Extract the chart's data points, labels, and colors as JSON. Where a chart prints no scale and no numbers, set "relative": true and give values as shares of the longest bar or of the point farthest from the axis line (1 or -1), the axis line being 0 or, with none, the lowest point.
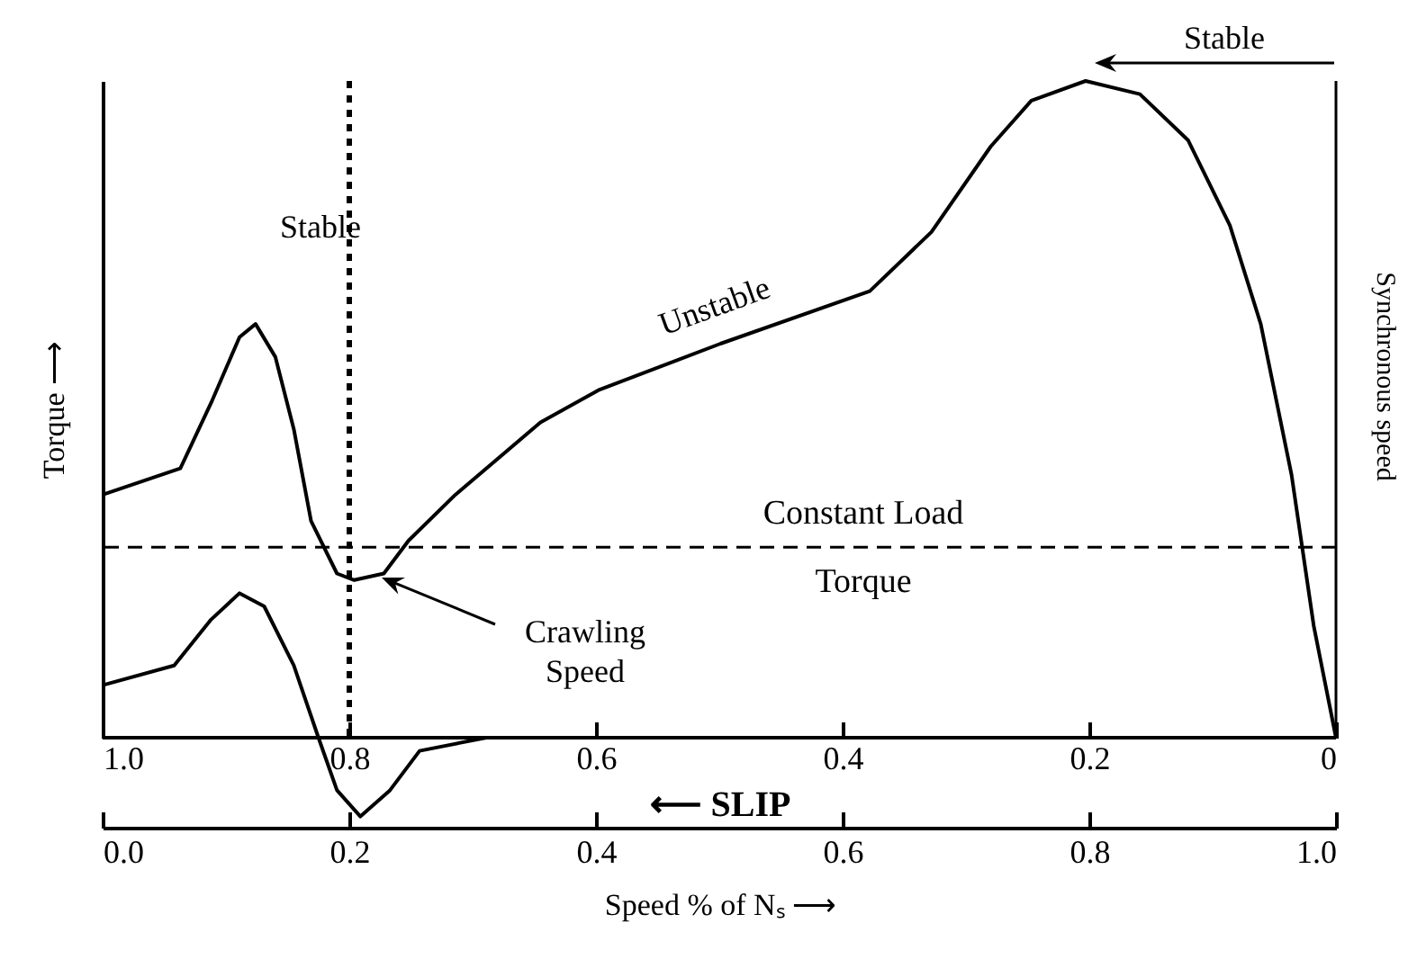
{
  "chart_data": {
    "type": "line",
    "relative": true,
    "xlabel": "Speed % of Nₛ ⟶",
    "ylabel": "Torque ⟶",
    "x2label": "⟵ SLIP",
    "xlim": [
      0,
      1
    ],
    "xticks": [
      {
        "value": 0,
        "label": "0.0"
      },
      0.2,
      0.4,
      0.6,
      0.8,
      {
        "value": 1,
        "label": "1.0"
      }
    ],
    "x2lim": [
      1,
      0
    ],
    "x2ticks": [
      {
        "value": 1,
        "label": "1.0"
      },
      0.8,
      0.6,
      0.4,
      0.2,
      0
    ],
    "series": [
      {
        "color": "#000000",
        "x": [
          0,
          0.063,
          0.088,
          0.111,
          0.124,
          0.14,
          0.155,
          0.169,
          0.19,
          0.204,
          0.228,
          0.248,
          0.286,
          0.355,
          0.403,
          0.501,
          0.622,
          0.672,
          0.72,
          0.753,
          0.797,
          0.841,
          0.88,
          0.914,
          0.939,
          0.964,
          0.982,
          1.0
        ],
        "values": [
          0.37,
          0.41,
          0.51,
          0.61,
          0.63,
          0.58,
          0.47,
          0.33,
          0.25,
          0.24,
          0.25,
          0.3,
          0.37,
          0.48,
          0.53,
          0.6,
          0.68,
          0.77,
          0.9,
          0.97,
          1.0,
          0.98,
          0.91,
          0.78,
          0.63,
          0.4,
          0.17,
          0.0
        ]
      },
      {
        "color": "#000000",
        "x": [
          0,
          0.058,
          0.088,
          0.111,
          0.131,
          0.155,
          0.175,
          0.19,
          0.209,
          0.233,
          0.257,
          0.311
        ],
        "values": [
          0.08,
          0.11,
          0.18,
          0.22,
          0.2,
          0.11,
          0.0,
          -0.08,
          -0.12,
          -0.08,
          -0.02,
          0.0
        ]
      }
    ],
    "ref_lines": [
      {
        "axis": "y",
        "value": 0.29,
        "label": "Constant Load\nTorque",
        "line_style": "dashed"
      },
      {
        "axis": "x",
        "value": 0.2,
        "line_style": "dotted"
      },
      {
        "axis": "x",
        "value": 1,
        "label": "Synchronous speed"
      }
    ],
    "annotations": [
      {
        "text": "Stable",
        "x": 0.124,
        "y": 0.63
      },
      "Stable",
      {
        "text": "Unstable",
        "x": 0.501,
        "y": 0.6
      },
      "Crawling\nSpeed"
    ]
  }
}
